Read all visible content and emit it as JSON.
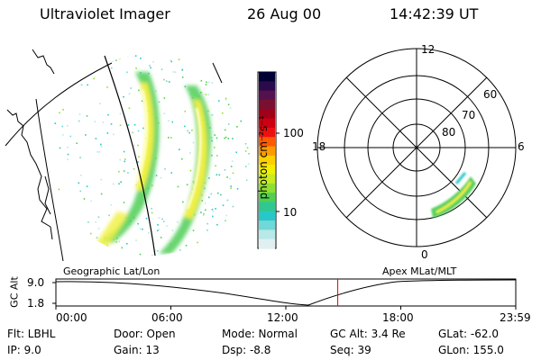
{
  "header": {
    "instrument": "Ultraviolet Imager",
    "date": "26 Aug 00",
    "time": "14:42:39 UT"
  },
  "colorbar": {
    "unit_label": "photon cm⁻²s⁻¹",
    "ticks": [
      "100",
      "10"
    ],
    "colors": [
      "#000033",
      "#2a0a4a",
      "#55104f",
      "#7a1030",
      "#a00018",
      "#cc0010",
      "#ee1010",
      "#ff5a00",
      "#ff9a00",
      "#ffd000",
      "#f2f000",
      "#c8ec20",
      "#90e030",
      "#50d050",
      "#30c890",
      "#28c8c8",
      "#70d8d8",
      "#b8e8e8",
      "#e0f0f0"
    ]
  },
  "geo_panel": {
    "label": "Geographic Lat/Lon"
  },
  "polar_panel": {
    "label": "Apex MLat/MLT",
    "mlt_labels": {
      "top": "12",
      "left": "18",
      "right": "6",
      "bottom": "0"
    },
    "mlat_labels": [
      "60",
      "70",
      "80"
    ]
  },
  "altitude_plot": {
    "axis_label": "GC Alt",
    "y_ticks": [
      "9.0",
      "1.8"
    ],
    "x_ticks": [
      "00:00",
      "06:00",
      "12:00",
      "18:00",
      "23:59"
    ],
    "current_marker_hours": 14.71,
    "marker_color": "#dd0000"
  },
  "status": {
    "flt": "Flt:  LBHL",
    "ip": "IP:  9.0",
    "door": "Door:  Open",
    "gain": "Gain:  13",
    "mode": "Mode:  Normal",
    "dsp": "Dsp:     -8.8",
    "gc_alt": "GC Alt:  3.4 Re",
    "seq": "Seq:  39",
    "glat": "GLat:   -62.0",
    "glon": "GLon:  155.0"
  }
}
